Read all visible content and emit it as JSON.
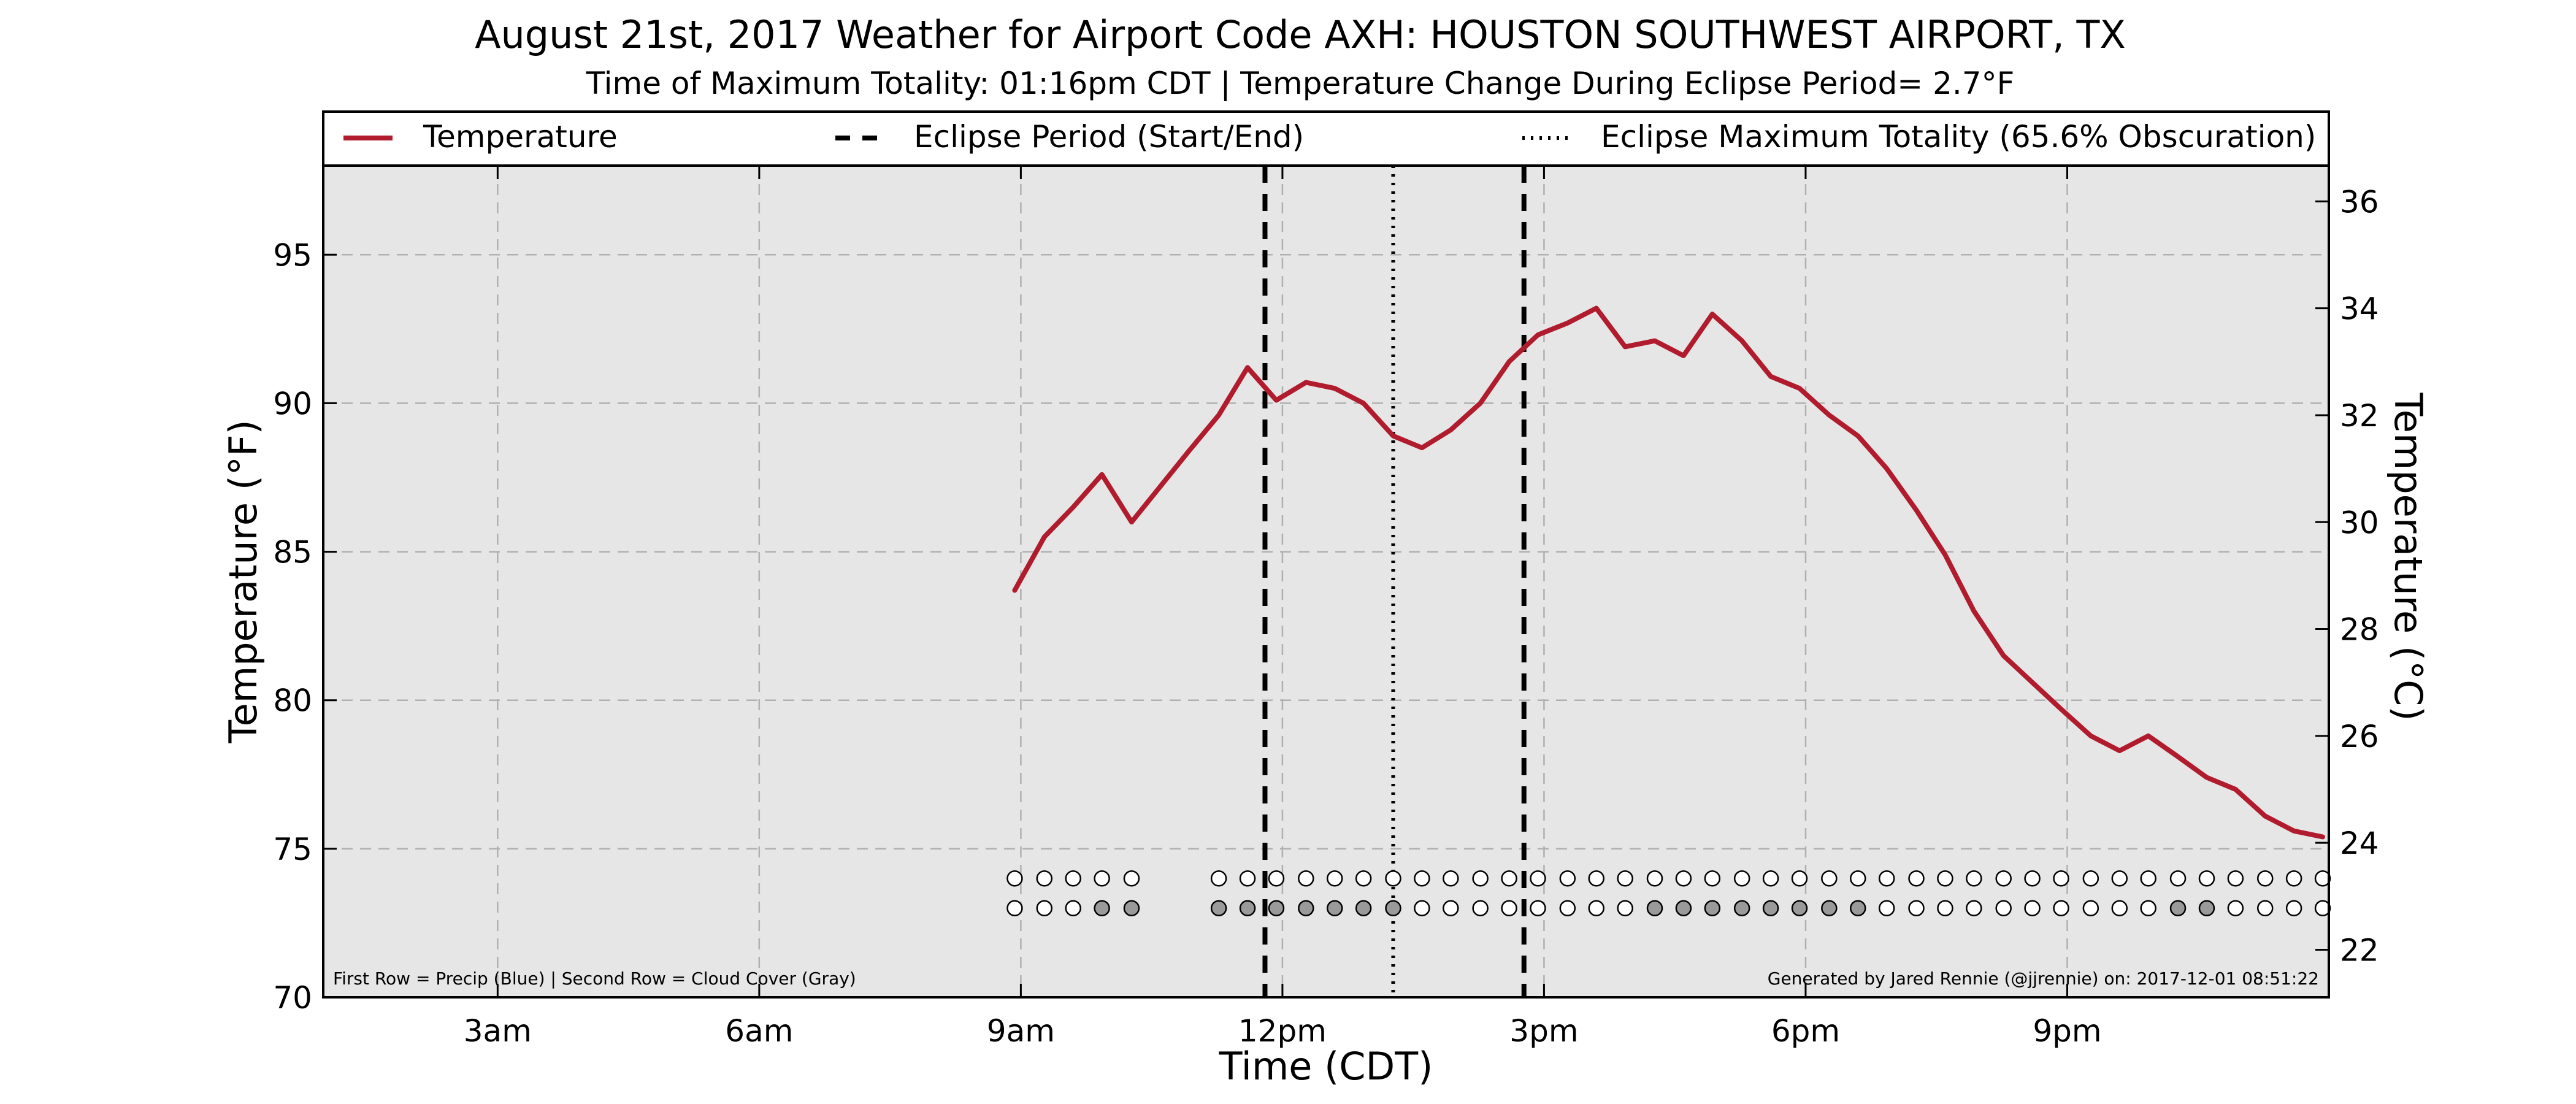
{
  "chart_data": {
    "type": "line",
    "title": "August 21st, 2017 Weather for Airport Code AXH: HOUSTON SOUTHWEST AIRPORT, TX",
    "subtitle": "Time of Maximum Totality: 01:16pm CDT | Temperature Change During Eclipse Period= 2.7°F",
    "xlabel": "Time (CDT)",
    "ylabel": "Temperature (°F)",
    "ylabel_right": "Temperature (°C)",
    "xlim": [
      1.0,
      24.0
    ],
    "ylim": [
      70,
      98
    ],
    "ylim_right": [
      21.11,
      36.67
    ],
    "x_ticks": [
      {
        "value": 3,
        "label": "3am"
      },
      {
        "value": 6,
        "label": "6am"
      },
      {
        "value": 9,
        "label": "9am"
      },
      {
        "value": 12,
        "label": "12pm"
      },
      {
        "value": 15,
        "label": "3pm"
      },
      {
        "value": 18,
        "label": "6pm"
      },
      {
        "value": 21,
        "label": "9pm"
      }
    ],
    "y_ticks": [
      {
        "value": 70,
        "label": "70"
      },
      {
        "value": 75,
        "label": "75"
      },
      {
        "value": 80,
        "label": "80"
      },
      {
        "value": 85,
        "label": "85"
      },
      {
        "value": 90,
        "label": "90"
      },
      {
        "value": 95,
        "label": "95"
      }
    ],
    "y_ticks_right": [
      {
        "value": 22,
        "label": "22"
      },
      {
        "value": 24,
        "label": "24"
      },
      {
        "value": 26,
        "label": "26"
      },
      {
        "value": 28,
        "label": "28"
      },
      {
        "value": 30,
        "label": "30"
      },
      {
        "value": 32,
        "label": "32"
      },
      {
        "value": 34,
        "label": "34"
      },
      {
        "value": 36,
        "label": "36"
      }
    ],
    "grid": true,
    "legend_position": "top",
    "legend": [
      {
        "label": "Temperature",
        "style": "solid"
      },
      {
        "label": "Eclipse Period (Start/End)",
        "style": "dashed"
      },
      {
        "label": "Eclipse Maximum Totality (65.6% Obscuration)",
        "style": "dotted"
      }
    ],
    "series": [
      {
        "name": "Temperature",
        "color": "#b01c2e",
        "x": [
          8.93,
          9.27,
          9.6,
          9.93,
          10.27,
          10.6,
          10.93,
          11.27,
          11.6,
          11.93,
          12.27,
          12.6,
          12.93,
          13.27,
          13.6,
          13.93,
          14.27,
          14.6,
          14.93,
          15.27,
          15.6,
          15.93,
          16.27,
          16.6,
          16.93,
          17.27,
          17.6,
          17.93,
          18.27,
          18.6,
          18.93,
          19.27,
          19.6,
          19.93,
          20.27,
          20.6,
          20.93,
          21.27,
          21.6,
          21.93,
          22.27,
          22.6,
          22.93,
          23.27,
          23.6,
          23.93
        ],
        "values": [
          83.7,
          85.5,
          86.5,
          87.6,
          86.0,
          87.2,
          88.4,
          89.6,
          91.2,
          90.1,
          90.7,
          90.5,
          90.0,
          88.9,
          88.5,
          89.1,
          90.0,
          91.4,
          92.3,
          92.7,
          93.2,
          91.9,
          92.1,
          91.6,
          93.0,
          92.1,
          90.9,
          90.5,
          89.6,
          88.9,
          87.8,
          86.4,
          84.9,
          83.0,
          81.5,
          80.6,
          79.7,
          78.8,
          78.3,
          78.8,
          78.1,
          77.4,
          77.0,
          76.1,
          75.6,
          75.4
        ]
      }
    ],
    "eclipse_start": 11.8,
    "eclipse_max": 13.27,
    "eclipse_end": 14.77,
    "precip_row": {
      "y": 74,
      "x": [
        8.93,
        9.27,
        9.6,
        9.93,
        10.27,
        11.27,
        11.6,
        11.93,
        12.27,
        12.6,
        12.93,
        13.27,
        13.6,
        13.93,
        14.27,
        14.6,
        14.93,
        15.27,
        15.6,
        15.93,
        16.27,
        16.6,
        16.93,
        17.27,
        17.6,
        17.93,
        18.27,
        18.6,
        18.93,
        19.27,
        19.6,
        19.93,
        20.27,
        20.6,
        20.93,
        21.27,
        21.6,
        21.93,
        22.27,
        22.6,
        22.93,
        23.27,
        23.6,
        23.93
      ],
      "filled": [
        false,
        false,
        false,
        false,
        false,
        false,
        false,
        false,
        false,
        false,
        false,
        false,
        false,
        false,
        false,
        false,
        false,
        false,
        false,
        false,
        false,
        false,
        false,
        false,
        false,
        false,
        false,
        false,
        false,
        false,
        false,
        false,
        false,
        false,
        false,
        false,
        false,
        false,
        false,
        false,
        false,
        false,
        false,
        false
      ]
    },
    "cloud_row": {
      "y": 73,
      "x": [
        8.93,
        9.27,
        9.6,
        9.93,
        10.27,
        11.27,
        11.6,
        11.93,
        12.27,
        12.6,
        12.93,
        13.27,
        13.6,
        13.93,
        14.27,
        14.6,
        14.93,
        15.27,
        15.6,
        15.93,
        16.27,
        16.6,
        16.93,
        17.27,
        17.6,
        17.93,
        18.27,
        18.6,
        18.93,
        19.27,
        19.6,
        19.93,
        20.27,
        20.6,
        20.93,
        21.27,
        21.6,
        21.93,
        22.27,
        22.6,
        22.93,
        23.27,
        23.6,
        23.93
      ],
      "filled": [
        false,
        false,
        false,
        true,
        true,
        true,
        true,
        true,
        true,
        true,
        true,
        true,
        false,
        false,
        false,
        false,
        false,
        false,
        false,
        false,
        true,
        true,
        true,
        true,
        true,
        true,
        true,
        true,
        false,
        false,
        false,
        false,
        false,
        false,
        false,
        false,
        false,
        false,
        true,
        true,
        false,
        false,
        false,
        false
      ]
    },
    "colors": {
      "temperature": "#b01c2e",
      "plot_background": "#e6e6e6",
      "grid": "#b0b0b0",
      "dot_empty": "#ffffff",
      "dot_filled": "#9a9a9a"
    },
    "annotations": {
      "bottom_left": "First Row = Precip (Blue) | Second Row = Cloud Cover (Gray)",
      "bottom_right": "Generated by Jared Rennie (@jjrennie) on: 2017-12-01 08:51:22"
    }
  }
}
